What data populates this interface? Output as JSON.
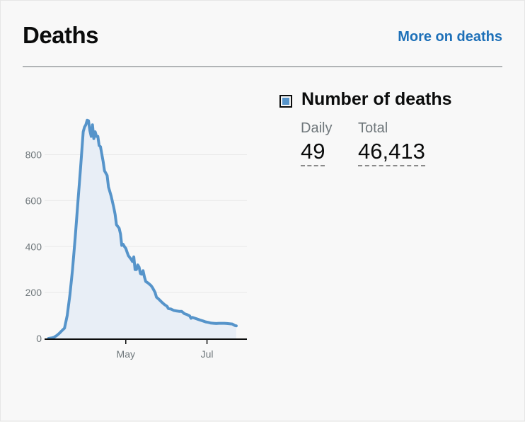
{
  "header": {
    "title": "Deaths",
    "more_link": "More on deaths"
  },
  "metric": {
    "title": "Number of deaths",
    "legend_color": "#5694ca",
    "daily_label": "Daily",
    "daily_value": "49",
    "total_label": "Total",
    "total_value": "46,413"
  },
  "chart_data": {
    "type": "area",
    "title": "",
    "xlabel": "",
    "ylabel": "",
    "ylim": [
      0,
      1000
    ],
    "yticks": [
      0,
      200,
      400,
      600,
      800
    ],
    "xticks": [
      {
        "label": "May",
        "date": "2020-05-01"
      },
      {
        "label": "Jul",
        "date": "2020-07-01"
      }
    ],
    "xlim": [
      "2020-03-01",
      "2020-07-31"
    ],
    "grid": true,
    "line_color": "#5694ca",
    "fill_color": "#e8eef6",
    "series": [
      {
        "values": [
          [
            "2020-03-04",
            0
          ],
          [
            "2020-03-06",
            2
          ],
          [
            "2020-03-08",
            5
          ],
          [
            "2020-03-10",
            12
          ],
          [
            "2020-03-12",
            22
          ],
          [
            "2020-03-14",
            34
          ],
          [
            "2020-03-16",
            45
          ],
          [
            "2020-03-18",
            100
          ],
          [
            "2020-03-20",
            190
          ],
          [
            "2020-03-22",
            300
          ],
          [
            "2020-03-24",
            440
          ],
          [
            "2020-03-26",
            590
          ],
          [
            "2020-03-28",
            740
          ],
          [
            "2020-03-30",
            900
          ],
          [
            "2020-03-31",
            920
          ],
          [
            "2020-04-01",
            930
          ],
          [
            "2020-04-02",
            950
          ],
          [
            "2020-04-03",
            948
          ],
          [
            "2020-04-04",
            905
          ],
          [
            "2020-04-05",
            880
          ],
          [
            "2020-04-06",
            930
          ],
          [
            "2020-04-07",
            870
          ],
          [
            "2020-04-08",
            900
          ],
          [
            "2020-04-09",
            880
          ],
          [
            "2020-04-10",
            880
          ],
          [
            "2020-04-11",
            840
          ],
          [
            "2020-04-12",
            835
          ],
          [
            "2020-04-14",
            770
          ],
          [
            "2020-04-15",
            730
          ],
          [
            "2020-04-17",
            710
          ],
          [
            "2020-04-18",
            660
          ],
          [
            "2020-04-20",
            620
          ],
          [
            "2020-04-22",
            570
          ],
          [
            "2020-04-23",
            540
          ],
          [
            "2020-04-24",
            495
          ],
          [
            "2020-04-26",
            480
          ],
          [
            "2020-04-27",
            455
          ],
          [
            "2020-04-28",
            405
          ],
          [
            "2020-04-29",
            410
          ],
          [
            "2020-04-30",
            400
          ],
          [
            "2020-05-01",
            392
          ],
          [
            "2020-05-02",
            375
          ],
          [
            "2020-05-03",
            360
          ],
          [
            "2020-05-05",
            345
          ],
          [
            "2020-05-06",
            335
          ],
          [
            "2020-05-07",
            355
          ],
          [
            "2020-05-08",
            300
          ],
          [
            "2020-05-09",
            300
          ],
          [
            "2020-05-10",
            320
          ],
          [
            "2020-05-11",
            310
          ],
          [
            "2020-05-12",
            282
          ],
          [
            "2020-05-13",
            280
          ],
          [
            "2020-05-14",
            295
          ],
          [
            "2020-05-15",
            268
          ],
          [
            "2020-05-16",
            248
          ],
          [
            "2020-05-18",
            240
          ],
          [
            "2020-05-20",
            230
          ],
          [
            "2020-05-21",
            222
          ],
          [
            "2020-05-23",
            200
          ],
          [
            "2020-05-24",
            180
          ],
          [
            "2020-05-26",
            170
          ],
          [
            "2020-05-28",
            158
          ],
          [
            "2020-05-30",
            148
          ],
          [
            "2020-06-01",
            140
          ],
          [
            "2020-06-02",
            130
          ],
          [
            "2020-06-04",
            128
          ],
          [
            "2020-06-06",
            122
          ],
          [
            "2020-06-08",
            120
          ],
          [
            "2020-06-10",
            118
          ],
          [
            "2020-06-12",
            118
          ],
          [
            "2020-06-14",
            108
          ],
          [
            "2020-06-16",
            104
          ],
          [
            "2020-06-18",
            98
          ],
          [
            "2020-06-19",
            88
          ],
          [
            "2020-06-20",
            92
          ],
          [
            "2020-06-22",
            88
          ],
          [
            "2020-06-24",
            84
          ],
          [
            "2020-06-26",
            80
          ],
          [
            "2020-06-28",
            76
          ],
          [
            "2020-06-30",
            72
          ],
          [
            "2020-07-02",
            70
          ],
          [
            "2020-07-04",
            67
          ],
          [
            "2020-07-06",
            66
          ],
          [
            "2020-07-08",
            65
          ],
          [
            "2020-07-10",
            66
          ],
          [
            "2020-07-12",
            66
          ],
          [
            "2020-07-14",
            66
          ],
          [
            "2020-07-16",
            65
          ],
          [
            "2020-07-18",
            64
          ],
          [
            "2020-07-20",
            63
          ],
          [
            "2020-07-22",
            56
          ],
          [
            "2020-07-23",
            55
          ]
        ]
      }
    ]
  }
}
